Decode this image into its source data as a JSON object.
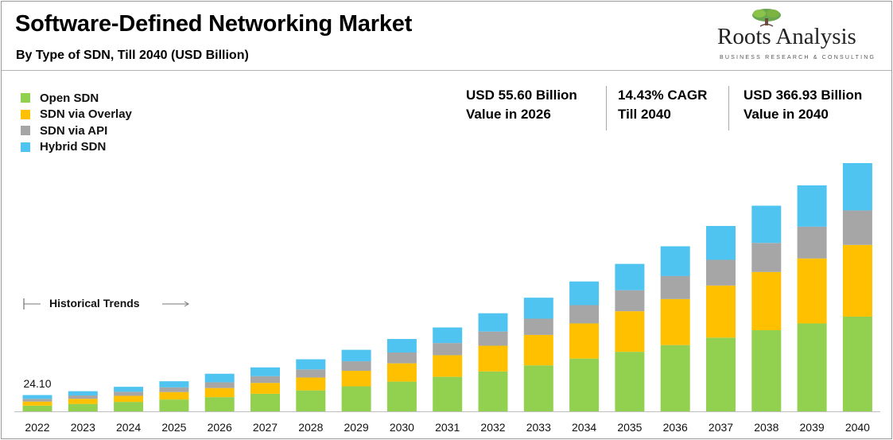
{
  "header": {
    "title": "Software-Defined Networking Market",
    "subtitle": "By Type of SDN, Till 2040 (USD Billion)",
    "logo_name": "Roots Analysis",
    "logo_tagline": "BUSINESS RESEARCH & CONSULTING"
  },
  "stats": [
    {
      "line1": "USD 55.60 Billion",
      "line2": "Value in 2026"
    },
    {
      "line1": "14.43% CAGR",
      "line2": "Till 2040"
    },
    {
      "line1": "USD 366.93 Billion",
      "line2": "Value in 2040"
    }
  ],
  "annotation": {
    "historical_label": "Historical Trends",
    "first_bar_label": "24.10"
  },
  "colors": {
    "open_sdn": "#92d050",
    "sdn_via_overlay": "#ffc000",
    "sdn_via_api": "#a6a6a6",
    "hybrid_sdn": "#4fc4f0",
    "divider": "#aaaaaa",
    "axis": "#bfbfbf"
  },
  "chart_data": {
    "type": "bar",
    "stacked": true,
    "title": "Software-Defined Networking Market",
    "subtitle": "By Type of SDN, Till 2040 (USD Billion)",
    "xlabel": "",
    "ylabel": "",
    "legend_position": "top-left",
    "grid": false,
    "ylim": [
      0,
      390
    ],
    "categories": [
      "2022",
      "2023",
      "2024",
      "2025",
      "2026",
      "2027",
      "2028",
      "2029",
      "2030",
      "2031",
      "2032",
      "2033",
      "2034",
      "2035",
      "2036",
      "2037",
      "2038",
      "2039",
      "2040"
    ],
    "series": [
      {
        "name": "Open SDN",
        "color": "#92d050",
        "values": [
          8.5,
          11,
          14,
          17.5,
          21,
          26,
          31,
          37,
          44,
          51,
          59,
          68,
          78,
          88,
          98,
          109,
          120,
          130,
          140
        ]
      },
      {
        "name": "SDN via Overlay",
        "color": "#ffc000",
        "values": [
          6,
          7.5,
          9,
          11,
          13.5,
          16,
          19,
          23,
          27,
          32,
          38,
          45,
          52,
          60,
          68,
          77,
          86,
          96,
          106
        ]
      },
      {
        "name": "SDN via API",
        "color": "#a6a6a6",
        "values": [
          4,
          5,
          6,
          7,
          8.5,
          10,
          12,
          14,
          16,
          18,
          21,
          24,
          27,
          31,
          34,
          38,
          43,
          47,
          51
        ]
      },
      {
        "name": "Hybrid SDN",
        "color": "#4fc4f0",
        "values": [
          5.6,
          6.3,
          7.3,
          9,
          12.6,
          13,
          15,
          17,
          20,
          23,
          27,
          31,
          35,
          39,
          44,
          50,
          55,
          61,
          69.93
        ]
      }
    ],
    "totals": [
      24.1,
      29.8,
      36.3,
      44.5,
      55.6,
      65,
      77,
      91,
      107,
      124,
      145,
      168,
      192,
      218,
      244,
      274,
      304,
      334,
      366.93
    ]
  }
}
